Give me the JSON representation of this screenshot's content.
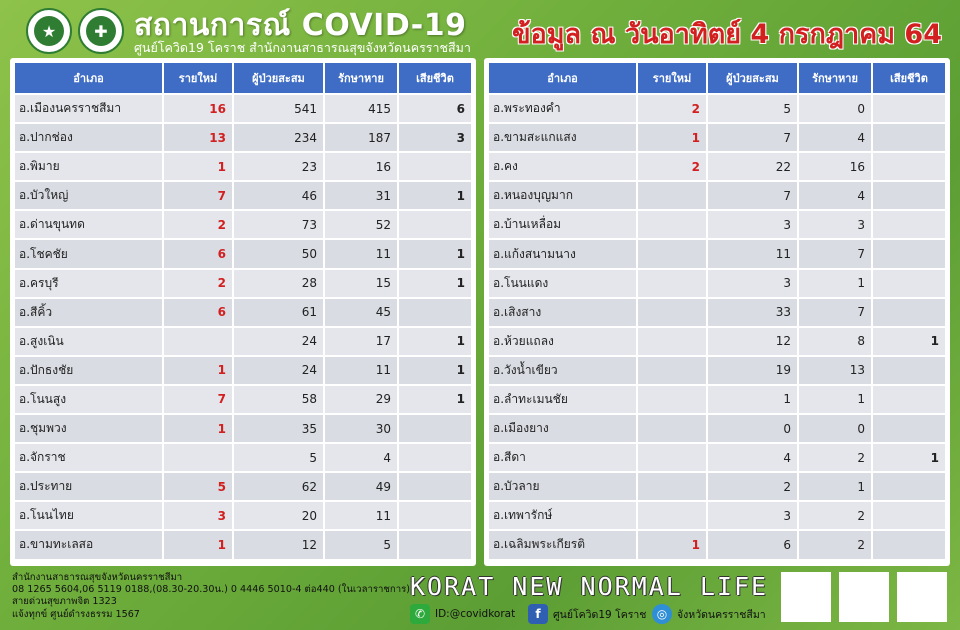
{
  "header": {
    "title": "สถานการณ์ COVID-19",
    "subtitle": "ศูนย์โควิด19 โคราช สำนักงานสาธารณสุขจังหวัดนครราชสีมา",
    "date": "ข้อมูล ณ วันอาทิตย์ 4 กรกฎาคม 64"
  },
  "columns": {
    "district": "อำเภอ",
    "new": "รายใหม่",
    "cumulative": "ผู้ป่วยสะสม",
    "treating": "รักษาหาย",
    "deaths": "เสียชีวิต"
  },
  "left_table": [
    {
      "district": "อ.เมืองนครราชสีมา",
      "new": "16",
      "cumulative": "541",
      "treating": "415",
      "deaths": "6"
    },
    {
      "district": "อ.ปากช่อง",
      "new": "13",
      "cumulative": "234",
      "treating": "187",
      "deaths": "3"
    },
    {
      "district": "อ.พิมาย",
      "new": "1",
      "cumulative": "23",
      "treating": "16",
      "deaths": ""
    },
    {
      "district": "อ.บัวใหญ่",
      "new": "7",
      "cumulative": "46",
      "treating": "31",
      "deaths": "1"
    },
    {
      "district": "อ.ด่านขุนทด",
      "new": "2",
      "cumulative": "73",
      "treating": "52",
      "deaths": ""
    },
    {
      "district": "อ.โชคชัย",
      "new": "6",
      "cumulative": "50",
      "treating": "11",
      "deaths": "1"
    },
    {
      "district": "อ.ครบุรี",
      "new": "2",
      "cumulative": "28",
      "treating": "15",
      "deaths": "1"
    },
    {
      "district": "อ.สีคิ้ว",
      "new": "6",
      "cumulative": "61",
      "treating": "45",
      "deaths": ""
    },
    {
      "district": "อ.สูงเนิน",
      "new": "",
      "cumulative": "24",
      "treating": "17",
      "deaths": "1"
    },
    {
      "district": "อ.ปักธงชัย",
      "new": "1",
      "cumulative": "24",
      "treating": "11",
      "deaths": "1"
    },
    {
      "district": "อ.โนนสูง",
      "new": "7",
      "cumulative": "58",
      "treating": "29",
      "deaths": "1"
    },
    {
      "district": "อ.ชุมพวง",
      "new": "1",
      "cumulative": "35",
      "treating": "30",
      "deaths": ""
    },
    {
      "district": "อ.จักราช",
      "new": "",
      "cumulative": "5",
      "treating": "4",
      "deaths": ""
    },
    {
      "district": "อ.ประทาย",
      "new": "5",
      "cumulative": "62",
      "treating": "49",
      "deaths": ""
    },
    {
      "district": "อ.โนนไทย",
      "new": "3",
      "cumulative": "20",
      "treating": "11",
      "deaths": ""
    },
    {
      "district": "อ.ขามทะเลสอ",
      "new": "1",
      "cumulative": "12",
      "treating": "5",
      "deaths": ""
    }
  ],
  "right_table": [
    {
      "district": "อ.พระทองคำ",
      "new": "2",
      "cumulative": "5",
      "treating": "0",
      "deaths": ""
    },
    {
      "district": "อ.ขามสะแกแสง",
      "new": "1",
      "cumulative": "7",
      "treating": "4",
      "deaths": ""
    },
    {
      "district": "อ.คง",
      "new": "2",
      "cumulative": "22",
      "treating": "16",
      "deaths": ""
    },
    {
      "district": "อ.หนองบุญมาก",
      "new": "",
      "cumulative": "7",
      "treating": "4",
      "deaths": ""
    },
    {
      "district": "อ.บ้านเหลื่อม",
      "new": "",
      "cumulative": "3",
      "treating": "3",
      "deaths": ""
    },
    {
      "district": "อ.แก้งสนามนาง",
      "new": "",
      "cumulative": "11",
      "treating": "7",
      "deaths": ""
    },
    {
      "district": "อ.โนนแดง",
      "new": "",
      "cumulative": "3",
      "treating": "1",
      "deaths": ""
    },
    {
      "district": "อ.เสิงสาง",
      "new": "",
      "cumulative": "33",
      "treating": "7",
      "deaths": ""
    },
    {
      "district": "อ.ห้วยแถลง",
      "new": "",
      "cumulative": "12",
      "treating": "8",
      "deaths": "1"
    },
    {
      "district": "อ.วังน้ำเขียว",
      "new": "",
      "cumulative": "19",
      "treating": "13",
      "deaths": ""
    },
    {
      "district": "อ.ลำทะเมนชัย",
      "new": "",
      "cumulative": "1",
      "treating": "1",
      "deaths": ""
    },
    {
      "district": "อ.เมืองยาง",
      "new": "",
      "cumulative": "0",
      "treating": "0",
      "deaths": ""
    },
    {
      "district": "อ.สีดา",
      "new": "",
      "cumulative": "4",
      "treating": "2",
      "deaths": "1"
    },
    {
      "district": "อ.บัวลาย",
      "new": "",
      "cumulative": "2",
      "treating": "1",
      "deaths": ""
    },
    {
      "district": "อ.เทพารักษ์",
      "new": "",
      "cumulative": "3",
      "treating": "2",
      "deaths": ""
    },
    {
      "district": "อ.เฉลิมพระเกียรติ",
      "new": "1",
      "cumulative": "6",
      "treating": "2",
      "deaths": ""
    }
  ],
  "footer": {
    "info_lines": [
      "สำนักงานสาธารณสุขจังหวัดนครราชสีมา",
      "08 1265 5604,06 5119 0188,(08.30-20.30น.) 0 4446 5010-4 ต่อ440 (ในเวลาราชการ)",
      "สายด่วนสุขภาพจิต 1323",
      "แจ้งทุกข์ ศูนย์ดำรงธรรม 1567"
    ],
    "slogan": "KORAT NEW NORMAL LIFE",
    "line_id": "ID:@covidkorat",
    "facebook": "ศูนย์โควิด19 โคราช",
    "website": "จังหวัดนครราชสีมา"
  },
  "icons": {
    "logo_left": "seal-logo",
    "logo_right": "ministry-of-public-health-logo",
    "line": "line-icon",
    "facebook": "facebook-icon",
    "web": "globe-icon",
    "qr": "qr-code"
  },
  "colors": {
    "background": "#6fae3c",
    "header_cell": "#3f6cc5",
    "new_cases": "#d21f1f",
    "date_text": "#d21f1f"
  }
}
